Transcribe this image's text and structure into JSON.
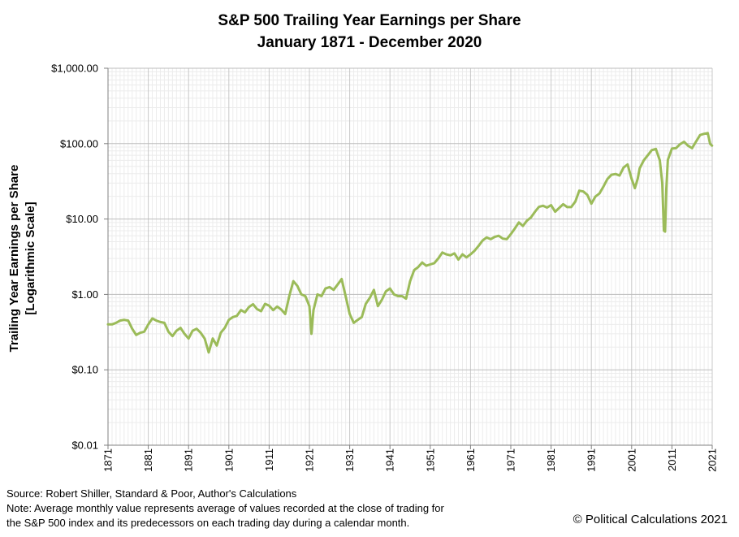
{
  "chart_data": {
    "type": "line",
    "title": "S&P 500 Trailing Year Earnings per Share",
    "subtitle": "January 1871 - December 2020",
    "ylabel": "Trailing Year Earnings per Share",
    "ylabel2": "[Logarithmic Scale]",
    "xlabel": "",
    "y_scale": "log",
    "ylim": [
      0.01,
      1000
    ],
    "xlim": [
      1871,
      2021
    ],
    "y_ticks": [
      {
        "value": 1000,
        "label": "$1,000.00"
      },
      {
        "value": 100,
        "label": "$100.00"
      },
      {
        "value": 10,
        "label": "$10.00"
      },
      {
        "value": 1,
        "label": "$1.00"
      },
      {
        "value": 0.1,
        "label": "$0.10"
      },
      {
        "value": 0.01,
        "label": "$0.01"
      }
    ],
    "x_ticks": [
      "1871",
      "1881",
      "1891",
      "1901",
      "1911",
      "1921",
      "1931",
      "1941",
      "1951",
      "1961",
      "1971",
      "1981",
      "1991",
      "2001",
      "2011",
      "2021"
    ],
    "grid": "on",
    "legend": "none",
    "series": [
      {
        "color": "#9BBB59",
        "x": [
          1871,
          1872,
          1873,
          1874,
          1875,
          1876,
          1877,
          1878,
          1879,
          1880,
          1881,
          1882,
          1883,
          1884,
          1885,
          1886,
          1887,
          1888,
          1889,
          1890,
          1891,
          1892,
          1893,
          1894,
          1895,
          1896,
          1897,
          1898,
          1899,
          1900,
          1901,
          1902,
          1903,
          1904,
          1905,
          1906,
          1907,
          1908,
          1909,
          1910,
          1911,
          1912,
          1913,
          1914,
          1915,
          1916,
          1917,
          1918,
          1919,
          1920,
          1921,
          1921.5,
          1922,
          1923,
          1924,
          1925,
          1926,
          1927,
          1928,
          1929,
          1930,
          1931,
          1932,
          1933,
          1934,
          1935,
          1936,
          1937,
          1938,
          1939,
          1940,
          1941,
          1942,
          1943,
          1944,
          1945,
          1946,
          1947,
          1948,
          1949,
          1950,
          1951,
          1952,
          1953,
          1954,
          1955,
          1956,
          1957,
          1958,
          1959,
          1960,
          1961,
          1962,
          1963,
          1964,
          1965,
          1966,
          1967,
          1968,
          1969,
          1970,
          1971,
          1972,
          1973,
          1974,
          1975,
          1976,
          1977,
          1978,
          1979,
          1980,
          1981,
          1982,
          1983,
          1984,
          1985,
          1986,
          1987,
          1988,
          1989,
          1990,
          1991,
          1992,
          1993,
          1994,
          1995,
          1996,
          1997,
          1998,
          1999,
          2000,
          2001,
          2001.8,
          2002.5,
          2003,
          2004,
          2005,
          2006,
          2007,
          2008,
          2008.6,
          2009,
          2009.3,
          2009.6,
          2010,
          2011,
          2012,
          2013,
          2014,
          2015,
          2016,
          2017,
          2018,
          2019,
          2019.9,
          2020.5,
          2020.95
        ],
        "y": [
          0.4,
          0.4,
          0.42,
          0.45,
          0.46,
          0.45,
          0.35,
          0.29,
          0.31,
          0.32,
          0.4,
          0.48,
          0.45,
          0.43,
          0.42,
          0.32,
          0.28,
          0.33,
          0.36,
          0.3,
          0.26,
          0.33,
          0.35,
          0.31,
          0.26,
          0.17,
          0.26,
          0.21,
          0.31,
          0.36,
          0.46,
          0.5,
          0.52,
          0.62,
          0.58,
          0.68,
          0.74,
          0.64,
          0.6,
          0.75,
          0.71,
          0.62,
          0.69,
          0.63,
          0.55,
          0.95,
          1.5,
          1.3,
          1.0,
          0.95,
          0.7,
          0.3,
          0.62,
          1.0,
          0.95,
          1.2,
          1.25,
          1.15,
          1.35,
          1.6,
          0.95,
          0.55,
          0.42,
          0.46,
          0.5,
          0.75,
          0.9,
          1.15,
          0.7,
          0.85,
          1.1,
          1.2,
          1.0,
          0.95,
          0.95,
          0.88,
          1.5,
          2.1,
          2.3,
          2.65,
          2.4,
          2.5,
          2.6,
          3.0,
          3.6,
          3.4,
          3.3,
          3.5,
          2.9,
          3.4,
          3.1,
          3.4,
          3.8,
          4.4,
          5.2,
          5.7,
          5.4,
          5.8,
          6.0,
          5.5,
          5.4,
          6.3,
          7.5,
          9.0,
          8.1,
          9.5,
          10.5,
          12.5,
          14.5,
          15.0,
          14.2,
          15.3,
          12.5,
          14.0,
          15.7,
          14.4,
          14.4,
          17.0,
          23.8,
          23.2,
          20.9,
          16.0,
          19.9,
          21.8,
          27.0,
          34.0,
          38.7,
          39.5,
          37.7,
          48.2,
          53.0,
          34.0,
          25.7,
          34.0,
          47.0,
          60.0,
          70.0,
          82.0,
          85.0,
          60.0,
          30.0,
          7.0,
          6.8,
          25.0,
          61.0,
          86.0,
          87.0,
          98.0,
          106.0,
          94.0,
          87.0,
          107.0,
          130.0,
          135.0,
          138.0,
          99.0,
          94.0
        ]
      }
    ]
  },
  "footer": {
    "source": "Source: Robert Shiller, Standard & Poor, Author's Calculations",
    "note_line1": "Note: Average monthly value represents average of values recorded at the close of trading for",
    "note_line2": "the S&P 500 index and its predecessors on each trading day during a calendar month.",
    "credit": "© Political Calculations 2021"
  }
}
